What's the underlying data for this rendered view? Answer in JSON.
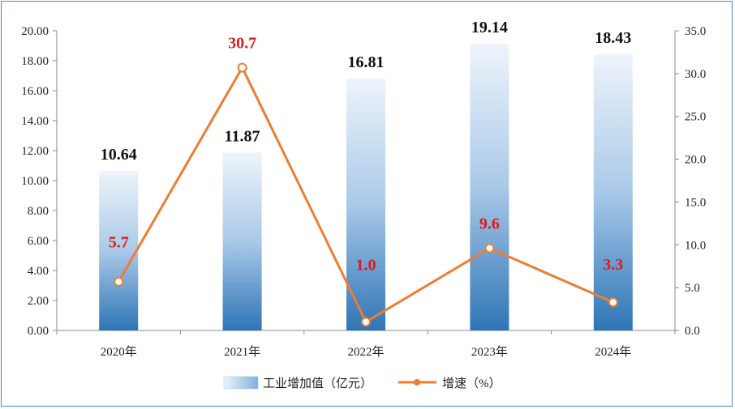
{
  "chart_data": {
    "type": "bar",
    "categories": [
      "2020年",
      "2021年",
      "2022年",
      "2023年",
      "2024年"
    ],
    "series": [
      {
        "name": "工业增加值（亿元）",
        "type": "bar",
        "axis": "left",
        "values": [
          10.64,
          11.87,
          16.81,
          19.14,
          18.43
        ],
        "labels": [
          "10.64",
          "11.87",
          "16.81",
          "19.14",
          "18.43"
        ]
      },
      {
        "name": "增速（%）",
        "type": "line",
        "axis": "right",
        "values": [
          5.7,
          30.7,
          1.0,
          9.6,
          3.3
        ],
        "labels": [
          "5.7",
          "30.7",
          "1.0",
          "9.6",
          "3.3"
        ]
      }
    ],
    "y_left": {
      "ylim": [
        0,
        20
      ],
      "ticks": [
        "0.00",
        "2.00",
        "4.00",
        "6.00",
        "8.00",
        "10.00",
        "12.00",
        "14.00",
        "16.00",
        "18.00",
        "20.00"
      ]
    },
    "y_right": {
      "ylim": [
        0,
        35
      ],
      "ticks": [
        "0.0",
        "5.0",
        "10.0",
        "15.0",
        "20.0",
        "25.0",
        "30.0",
        "35.0"
      ]
    },
    "grid": false,
    "legend": "bottom",
    "colors": {
      "bar_top": "#eef4fb",
      "bar_bottom": "#2e75b6",
      "line": "#ed7d31",
      "line_label": "#e0191b",
      "bar_label": "#111111",
      "frame": "#4a86c5"
    }
  }
}
